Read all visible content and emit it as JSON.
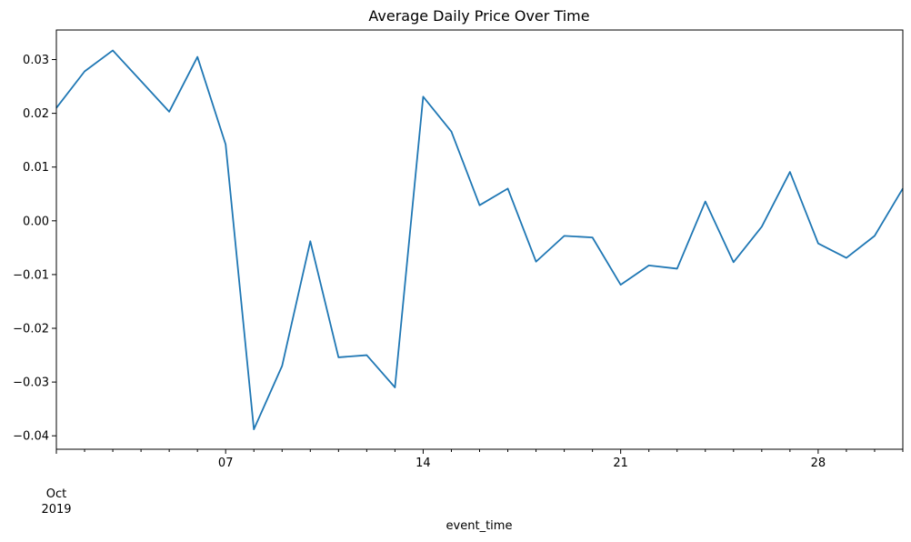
{
  "chart_data": {
    "type": "line",
    "title": "Average Daily Price Over Time",
    "xlabel": "event_time",
    "ylabel": "",
    "x_range": [
      1,
      31
    ],
    "ylim": [
      -0.0425,
      0.0355
    ],
    "yticks": [
      {
        "value": 0.03,
        "label": "0.03"
      },
      {
        "value": 0.02,
        "label": "0.02"
      },
      {
        "value": 0.01,
        "label": "0.01"
      },
      {
        "value": 0.0,
        "label": "0.00"
      },
      {
        "value": -0.01,
        "label": "−0.01"
      },
      {
        "value": -0.02,
        "label": "−0.02"
      },
      {
        "value": -0.03,
        "label": "−0.03"
      },
      {
        "value": -0.04,
        "label": "−0.04"
      }
    ],
    "xticks_major": [
      {
        "value": 7,
        "label": "07"
      },
      {
        "value": 14,
        "label": "14"
      },
      {
        "value": 21,
        "label": "21"
      },
      {
        "value": 28,
        "label": "28"
      }
    ],
    "x_start_label_lines": [
      "Oct",
      "2019"
    ],
    "grid": false,
    "series": [
      {
        "name": "Average Daily Price",
        "color": "#1f77b4",
        "x": [
          1,
          2,
          3,
          4,
          5,
          6,
          7,
          8,
          9,
          10,
          11,
          12,
          13,
          14,
          15,
          16,
          17,
          18,
          19,
          20,
          21,
          22,
          23,
          24,
          25,
          26,
          27,
          28,
          29,
          30,
          31
        ],
        "values": [
          0.021,
          0.0278,
          0.0317,
          0.026,
          0.0203,
          0.0305,
          0.0142,
          -0.0388,
          -0.027,
          -0.0038,
          -0.0254,
          -0.025,
          -0.031,
          0.0231,
          0.0166,
          0.0029,
          0.006,
          -0.0076,
          -0.0028,
          -0.0031,
          -0.0119,
          -0.0083,
          -0.0089,
          0.0036,
          -0.0077,
          -0.0011,
          0.0091,
          -0.0042,
          -0.0069,
          -0.0028,
          0.006
        ]
      }
    ]
  }
}
